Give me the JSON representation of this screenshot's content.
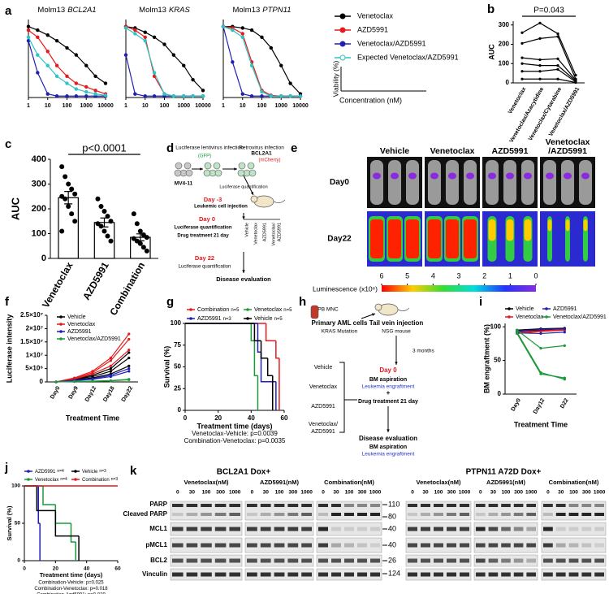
{
  "panel_letters": [
    "a",
    "b",
    "c",
    "d",
    "e",
    "f",
    "g",
    "h",
    "i",
    "j",
    "k"
  ],
  "panel_a_legend": {
    "series": [
      {
        "name": "Venetoclax",
        "color": "#000000"
      },
      {
        "name": "AZD5991",
        "color": "#e41a1c"
      },
      {
        "name": "Venetoclax/AZD5991",
        "color": "#1f1fb4"
      },
      {
        "name": "Expected Venetoclax/AZD5991",
        "color": "#2ec4c4"
      }
    ],
    "ylabel": "Viability (%)",
    "xlabel": "Concentration (nM)"
  },
  "chart_data": [
    {
      "type": "line",
      "title": "Molm13",
      "gene": "BCL2A1",
      "x": [
        1,
        3,
        10,
        30,
        100,
        300,
        1000,
        3000,
        10000
      ],
      "xlim": [
        1,
        10000
      ],
      "xticks": [
        1,
        10,
        100,
        1000,
        10000
      ],
      "xlog": true,
      "ylim": [
        0,
        110
      ],
      "series": [
        {
          "color": "#000000",
          "values": [
            100,
            95,
            88,
            80,
            70,
            60,
            45,
            30,
            20
          ]
        },
        {
          "color": "#e41a1c",
          "values": [
            95,
            85,
            65,
            45,
            30,
            20,
            15,
            10,
            5
          ]
        },
        {
          "color": "#1f1fb4",
          "values": [
            80,
            35,
            5,
            2,
            2,
            2,
            2,
            2,
            2
          ]
        },
        {
          "color": "#2ec4c4",
          "values": [
            85,
            60,
            45,
            30,
            20,
            12,
            8,
            5,
            3
          ]
        }
      ]
    },
    {
      "type": "line",
      "title": "Molm13",
      "gene": "KRAS",
      "x": [
        1,
        3,
        10,
        30,
        100,
        300,
        1000,
        3000,
        10000
      ],
      "xlim": [
        1,
        10000
      ],
      "xticks": [
        1,
        10,
        100,
        1000,
        10000
      ],
      "xlog": true,
      "ylim": [
        0,
        110
      ],
      "series": [
        {
          "color": "#000000",
          "values": [
            100,
            98,
            92,
            85,
            75,
            60,
            45,
            25,
            10
          ]
        },
        {
          "color": "#e41a1c",
          "values": [
            100,
            95,
            85,
            30,
            5,
            2,
            2,
            2,
            2
          ]
        },
        {
          "color": "#1f1fb4",
          "values": [
            60,
            5,
            2,
            2,
            2,
            2,
            2,
            2,
            2
          ]
        },
        {
          "color": "#2ec4c4",
          "values": [
            98,
            90,
            80,
            35,
            5,
            2,
            2,
            2,
            2
          ]
        }
      ]
    },
    {
      "type": "line",
      "title": "Molm13",
      "gene": "PTPN11",
      "x": [
        1,
        3,
        10,
        30,
        100,
        300,
        1000,
        3000,
        10000
      ],
      "xlim": [
        1,
        10000
      ],
      "xticks": [
        1,
        10,
        100,
        1000,
        10000
      ],
      "xlog": true,
      "ylim": [
        0,
        110
      ],
      "series": [
        {
          "color": "#000000",
          "values": [
            100,
            100,
            98,
            95,
            85,
            70,
            45,
            20,
            5
          ]
        },
        {
          "color": "#e41a1c",
          "values": [
            100,
            98,
            90,
            50,
            10,
            3,
            2,
            2,
            2
          ]
        },
        {
          "color": "#1f1fb4",
          "values": [
            100,
            50,
            5,
            2,
            2,
            2,
            2,
            2,
            2
          ]
        },
        {
          "color": "#2ec4c4",
          "values": [
            100,
            95,
            85,
            45,
            8,
            2,
            2,
            2,
            2
          ]
        }
      ]
    },
    {
      "type": "line",
      "ylabel": "AUC",
      "annotation": "P=0.043",
      "categories": [
        "Venetoclax",
        "Venetoclax/Azacytidine",
        "Venetoclax/Cytarabine",
        "Venetoclax/AZD5991"
      ],
      "ylim": [
        0,
        320
      ],
      "yticks": [
        0,
        100,
        200,
        300
      ],
      "series": [
        {
          "color": "#000000",
          "values": [
            260,
            310,
            255,
            40
          ]
        },
        {
          "color": "#000000",
          "values": [
            205,
            230,
            240,
            20
          ]
        },
        {
          "color": "#000000",
          "values": [
            130,
            120,
            125,
            15
          ]
        },
        {
          "color": "#000000",
          "values": [
            100,
            90,
            90,
            10
          ]
        },
        {
          "color": "#000000",
          "values": [
            60,
            60,
            70,
            5
          ]
        },
        {
          "color": "#000000",
          "values": [
            20,
            20,
            20,
            2
          ]
        }
      ]
    },
    {
      "type": "bar",
      "ylabel": "AUC",
      "annotation": "p<0.0001",
      "categories": [
        "Venetoclax",
        "AZD5991",
        "Combination"
      ],
      "values": [
        245,
        145,
        85
      ],
      "errors": [
        25,
        18,
        14
      ],
      "points": [
        [
          370,
          330,
          300,
          280,
          260,
          250,
          240,
          210,
          180,
          150,
          110
        ],
        [
          240,
          210,
          190,
          170,
          150,
          140,
          130,
          110,
          90,
          70
        ],
        [
          180,
          140,
          110,
          95,
          85,
          80,
          70,
          60,
          45,
          30
        ]
      ],
      "color": "#ffffff",
      "ylim": [
        0,
        400
      ],
      "yticks": [
        0,
        100,
        200,
        300,
        400
      ]
    },
    {
      "type": "line",
      "ylabel": "Luciferase intensity",
      "xlabel": "Treatment Time",
      "categories": [
        "Day0",
        "Day9",
        "Day12",
        "Day18",
        "Day22"
      ],
      "ylim": [
        0,
        25000000
      ],
      "yticks": [
        0,
        {
          "value": 5000000,
          "label": "5×10⁶"
        },
        {
          "value": 10000000,
          "label": "1×10⁷"
        },
        {
          "value": 15000000,
          "label": "1.5×10⁷"
        },
        {
          "value": 20000000,
          "label": "2×10⁷"
        },
        {
          "value": 25000000,
          "label": "2.5×10⁷"
        }
      ],
      "series": [
        {
          "name": "Vehicle",
          "color": "#000000",
          "values": [
            [
              0,
              1000000,
              2000000,
              4000000,
              9000000
            ],
            [
              0,
              800000,
              1500000,
              3000000,
              6000000
            ],
            [
              0,
              1000000,
              2500000,
              5000000,
              11000000
            ]
          ]
        },
        {
          "name": "Venetoclax",
          "color": "#e41a1c",
          "values": [
            [
              0,
              1500000,
              4000000,
              9000000,
              18000000
            ],
            [
              0,
              1200000,
              3500000,
              8000000,
              16000000
            ],
            [
              0,
              1000000,
              3000000,
              6000000,
              12000000
            ]
          ]
        },
        {
          "name": "AZD5991",
          "color": "#1f1fb4",
          "values": [
            [
              0,
              500000,
              1000000,
              2000000,
              4000000
            ],
            [
              0,
              600000,
              1200000,
              2500000,
              5000000
            ]
          ]
        },
        {
          "name": "Venetoclax/AZD5991",
          "color": "#1a9a3a",
          "values": [
            [
              0,
              200000,
              300000,
              500000,
              1000000
            ],
            [
              0,
              100000,
              200000,
              400000,
              800000
            ]
          ]
        }
      ]
    },
    {
      "type": "step",
      "ylabel": "Survival (%)",
      "xlabel": "Treatment time (days)",
      "annotations": [
        "Venetoclax-Vehicle: p=0.0039",
        "Combination-Venetoclax: p=0.0035"
      ],
      "xlim": [
        0,
        60
      ],
      "xticks": [
        0,
        20,
        40,
        60
      ],
      "ylim": [
        0,
        100
      ],
      "yticks": [
        0,
        25,
        50,
        75,
        100
      ],
      "series": [
        {
          "name": "Combination",
          "n": "n=5",
          "color": "#e41a1c",
          "x": [
            0,
            49,
            55,
            57
          ],
          "values": [
            100,
            80,
            60,
            0
          ]
        },
        {
          "name": "Venetoclax",
          "n": "n=5",
          "color": "#1a9a3a",
          "x": [
            0,
            40,
            42,
            44
          ],
          "values": [
            100,
            80,
            40,
            0
          ]
        },
        {
          "name": "AZD5991",
          "n": "n=3",
          "color": "#1f1fb4",
          "x": [
            0,
            44,
            46,
            55
          ],
          "values": [
            100,
            67,
            33,
            0
          ]
        },
        {
          "name": "Vehicle",
          "n": "n=5",
          "color": "#000000",
          "x": [
            0,
            42,
            46,
            50,
            53
          ],
          "values": [
            100,
            80,
            60,
            40,
            0
          ]
        }
      ]
    },
    {
      "type": "line",
      "ylabel": "BM engraftment (%)",
      "xlabel": "Treatment Time",
      "categories": [
        "Day0",
        "Day12",
        "D22"
      ],
      "ylim": [
        0,
        105
      ],
      "yticks": [
        0,
        50,
        100
      ],
      "series": [
        {
          "name": "Vehicle",
          "color": "#000000",
          "values": [
            [
              95,
              97,
              98
            ],
            [
              93,
              95,
              97
            ]
          ]
        },
        {
          "name": "Venetoclax",
          "color": "#e41a1c",
          "values": [
            [
              92,
              94,
              96
            ],
            [
              90,
              93,
              95
            ]
          ]
        },
        {
          "name": "AZD5991",
          "color": "#1f1fb4",
          "values": [
            [
              94,
              96,
              97
            ],
            [
              91,
              90,
              92
            ]
          ]
        },
        {
          "name": "Venetoclax/AZD5991",
          "color": "#1a9a3a",
          "values": [
            [
              95,
              68,
              72
            ],
            [
              92,
              32,
              22
            ],
            [
              90,
              30,
              24
            ]
          ]
        }
      ]
    },
    {
      "type": "step",
      "ylabel": "Survival (%)",
      "xlabel": "Treatment time (days)",
      "annotations": [
        "Combination-Vehicle: p=0.025",
        "Combination-Venetoclax: p=0.018",
        "Combination-Azd5991: p=0.029"
      ],
      "xlim": [
        0,
        60
      ],
      "xticks": [
        0,
        20,
        40,
        60
      ],
      "ylim": [
        0,
        100
      ],
      "yticks": [
        0,
        50,
        100
      ],
      "series": [
        {
          "name": "AZD5991",
          "n": "n=4",
          "color": "#1f1fb4",
          "x": [
            0,
            9,
            10
          ],
          "values": [
            100,
            50,
            0
          ]
        },
        {
          "name": "Venetoclax",
          "n": "n=4",
          "color": "#1a9a3a",
          "x": [
            0,
            12,
            20,
            30,
            33
          ],
          "values": [
            100,
            75,
            50,
            25,
            0
          ]
        },
        {
          "name": "Vehicle",
          "n": "n=3",
          "color": "#000000",
          "x": [
            0,
            8,
            20,
            35
          ],
          "values": [
            100,
            67,
            33,
            0
          ]
        },
        {
          "name": "Combination",
          "n": "n=3",
          "color": "#e41a1c",
          "x": [
            0,
            60
          ],
          "values": [
            100,
            100
          ]
        }
      ]
    }
  ],
  "diagram_d": {
    "infection1": "Luciferase lentivirus infection",
    "gfp": "(GFP)",
    "infection2": "Retrovirus infection",
    "gene": "BCL2A1",
    "mcherry": "(mCherry)",
    "cell_line": "MV4-11",
    "quant1": "Luciferase quantification",
    "day_m3": "Day -3",
    "injection": "Leukemic cell injection",
    "day0": "Day 0",
    "quant2": "Luciferase quantification",
    "treatment": "Drug treatment 21 day",
    "arms": [
      [
        "Vehicle"
      ],
      [
        "Venetoclax"
      ],
      [
        "AZD5991"
      ],
      [
        "Venetoclax/",
        "AZD5991"
      ]
    ],
    "day22": "Day 22",
    "quant3": "Luciferase quantification",
    "evaluation": "Disease evaluation"
  },
  "imaging_e": {
    "columns": [
      [
        "Vehicle"
      ],
      [
        "Venetoclax"
      ],
      [
        "AZD5991"
      ],
      [
        "Venetoclax",
        "/AZD5991"
      ]
    ],
    "rows": [
      "Day0",
      "Day22"
    ],
    "colorbar_label": "Luminescence (x10⁶)",
    "colorbar_ticks": [
      6,
      5,
      4,
      3,
      2,
      1,
      0
    ]
  },
  "diagram_h": {
    "source": "PB MNC",
    "cells": "Primary AML cells",
    "mutation": "KRAS Mutation",
    "injection": "Tail vein injection",
    "host": "NSG mouse",
    "interval": "3 months",
    "day0": "Day 0",
    "aspiration1": "BM aspiration",
    "engraftment1": "Leukemia engraftment",
    "plus": "+",
    "treatment": "Drug treatment 21 day",
    "arms": [
      [
        "Vehicle"
      ],
      [
        "Venetoclax"
      ],
      [
        "AZD5991"
      ],
      [
        "Venetoclax/",
        "AZD5991"
      ]
    ],
    "evaluation": "Disease evaluation",
    "aspiration2": "BM aspiration",
    "engraftment2": "Leukemia engraftment"
  },
  "blots_k": {
    "left_title": "BCL2A1 Dox+",
    "right_title": "PTPN11 A72D Dox+",
    "treatments": [
      "Venetoclax(nM)",
      "AZD5991(nM)",
      "Combination(nM)"
    ],
    "concentrations": [
      0,
      30,
      100,
      300,
      1000
    ],
    "proteins": [
      "PARP",
      "Cleaved PARP",
      "MCL1",
      "pMCL1",
      "BCL2",
      "Vinculin"
    ],
    "markers": [
      110,
      80,
      40,
      40,
      26,
      124
    ]
  }
}
